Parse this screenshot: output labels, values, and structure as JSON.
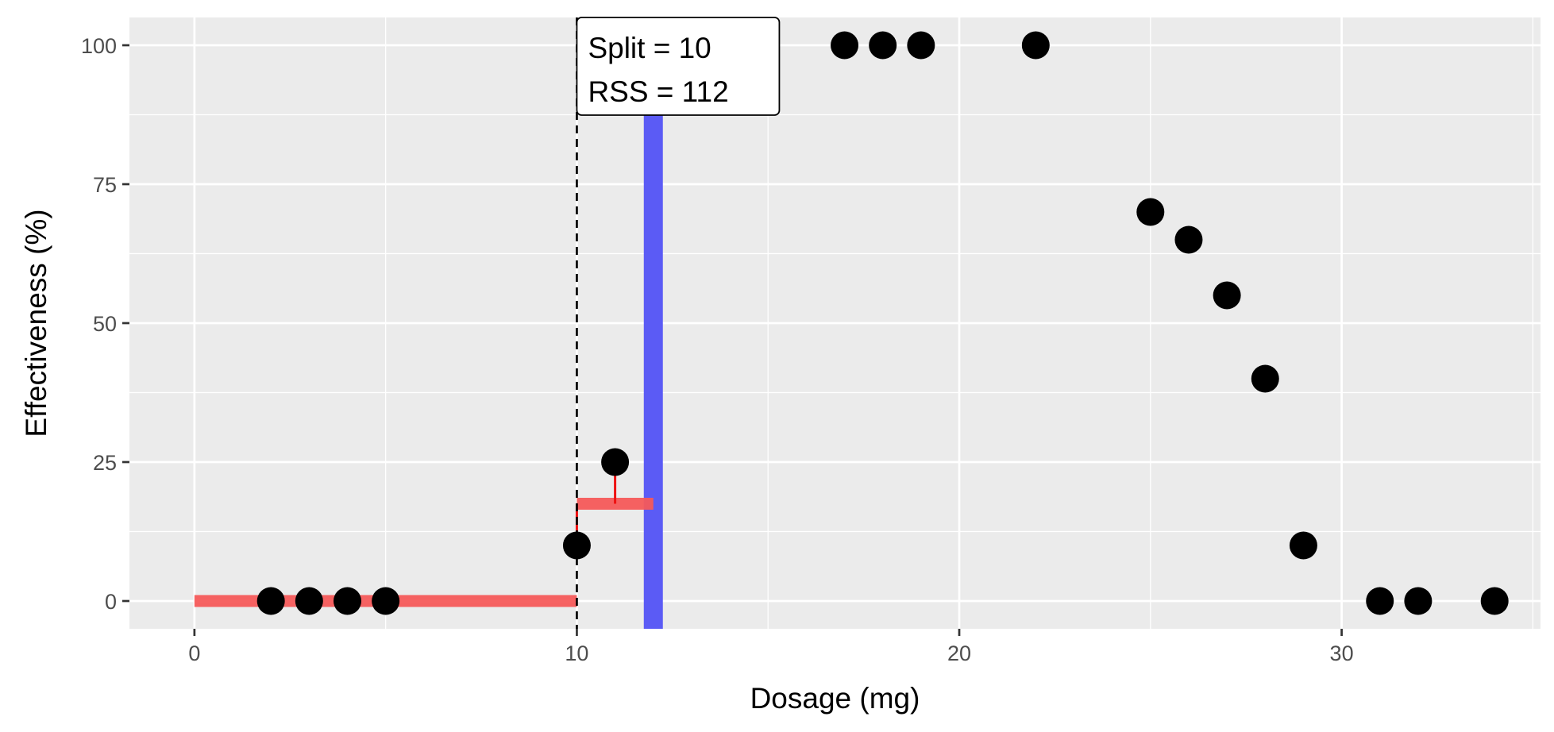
{
  "chart_data": {
    "type": "scatter",
    "title": "",
    "xlabel": "Dosage (mg)",
    "ylabel": "Effectiveness (%)",
    "xlim": [
      -1.7,
      35.2
    ],
    "ylim": [
      -5,
      105
    ],
    "x_ticks": [
      0,
      10,
      20,
      30
    ],
    "y_ticks": [
      0,
      25,
      50,
      75,
      100
    ],
    "x_tick_labels": [
      "0",
      "10",
      "20",
      "30"
    ],
    "y_tick_labels": [
      "0",
      "25",
      "50",
      "75",
      "100"
    ],
    "grid": true,
    "points": [
      {
        "x": 2,
        "y": 0
      },
      {
        "x": 3,
        "y": 0
      },
      {
        "x": 4,
        "y": 0
      },
      {
        "x": 5,
        "y": 0
      },
      {
        "x": 10,
        "y": 10
      },
      {
        "x": 11,
        "y": 25
      },
      {
        "x": 17,
        "y": 100
      },
      {
        "x": 18,
        "y": 100
      },
      {
        "x": 19,
        "y": 100
      },
      {
        "x": 22,
        "y": 100
      },
      {
        "x": 25,
        "y": 70
      },
      {
        "x": 26,
        "y": 65
      },
      {
        "x": 27,
        "y": 55
      },
      {
        "x": 28,
        "y": 40
      },
      {
        "x": 29,
        "y": 10
      },
      {
        "x": 31,
        "y": 0
      },
      {
        "x": 32,
        "y": 0
      },
      {
        "x": 34,
        "y": 0
      }
    ],
    "split_line": {
      "x": 10
    },
    "highlight_band": {
      "x": 12,
      "color": "#5b5bf5"
    },
    "mean_segments": [
      {
        "x0": 0,
        "x1": 10,
        "y": 0
      },
      {
        "x0": 10,
        "x1": 12,
        "y": 17.5
      }
    ],
    "residuals": [
      {
        "x": 10,
        "y0": 10,
        "y1": 17.5
      },
      {
        "x": 11,
        "y0": 25,
        "y1": 17.5
      }
    ],
    "annotation": {
      "lines": [
        "Split = 10",
        "RSS = 112"
      ],
      "anchor_x": 10,
      "anchor_y": 105
    },
    "colors": {
      "panel": "#ebebeb",
      "grid": "#ffffff",
      "point": "#000000",
      "mean": "#f55a5a",
      "residual": "#ee1111",
      "split": "#000000"
    }
  }
}
